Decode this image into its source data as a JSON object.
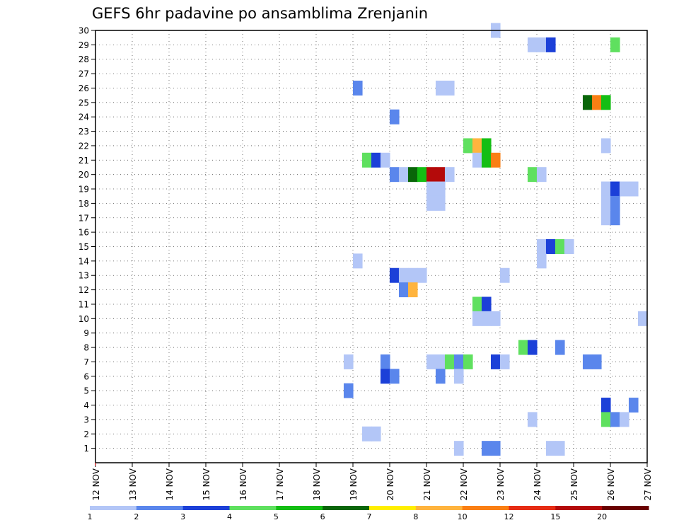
{
  "chart_data": {
    "type": "heatmap",
    "title": "GEFS 6hr padavine po ansamblima Zrenjanin",
    "xlabel": "",
    "ylabel": "",
    "x_ticks": [
      "12 NOV",
      "13 NOV",
      "14 NOV",
      "15 NOV",
      "16 NOV",
      "17 NOV",
      "18 NOV",
      "19 NOV",
      "20 NOV",
      "21 NOV",
      "22 NOV",
      "23 NOV",
      "24 NOV",
      "25 NOV",
      "26 NOV",
      "27 NOV"
    ],
    "x_range": [
      12,
      27
    ],
    "x_step_days": 0.25,
    "y_ticks": [
      1,
      2,
      3,
      4,
      5,
      6,
      7,
      8,
      9,
      10,
      11,
      12,
      13,
      14,
      15,
      16,
      17,
      18,
      19,
      20,
      21,
      22,
      23,
      24,
      25,
      26,
      27,
      28,
      29,
      30
    ],
    "y_range": [
      0,
      30
    ],
    "grid": true,
    "legend": {
      "placement": "bottom",
      "labels": [
        "1",
        "2",
        "3",
        "4",
        "5",
        "6",
        "7",
        "8",
        "10",
        "12",
        "15",
        "20"
      ],
      "colors": [
        "#b3c6f7",
        "#5a86ec",
        "#1c40d8",
        "#5fe05f",
        "#14be14",
        "#096609",
        "#ffef00",
        "#ffb43e",
        "#fa7f14",
        "#e62c14",
        "#b40a0a",
        "#6b0000"
      ]
    },
    "level_colors": {
      "1": "#b3c6f7",
      "2": "#5a86ec",
      "3": "#1c40d8",
      "4": "#5fe05f",
      "5": "#14be14",
      "6": "#096609",
      "8": "#ffb43e",
      "10": "#fa7f14",
      "15": "#b40a0a"
    },
    "cells": [
      {
        "member": 30,
        "time": 22.88,
        "level": 1
      },
      {
        "member": 29,
        "time": 23.88,
        "level": 1
      },
      {
        "member": 29,
        "time": 24.13,
        "level": 1
      },
      {
        "member": 29,
        "time": 24.38,
        "level": 3
      },
      {
        "member": 29,
        "time": 26.13,
        "level": 4
      },
      {
        "member": 26,
        "time": 19.13,
        "level": 2
      },
      {
        "member": 26,
        "time": 21.38,
        "level": 1
      },
      {
        "member": 26,
        "time": 21.63,
        "level": 1
      },
      {
        "member": 25,
        "time": 25.38,
        "level": 6
      },
      {
        "member": 25,
        "time": 25.63,
        "level": 10
      },
      {
        "member": 25,
        "time": 25.88,
        "level": 5
      },
      {
        "member": 24,
        "time": 20.13,
        "level": 2
      },
      {
        "member": 22,
        "time": 22.13,
        "level": 4
      },
      {
        "member": 22,
        "time": 22.38,
        "level": 8
      },
      {
        "member": 22,
        "time": 22.63,
        "level": 5
      },
      {
        "member": 22,
        "time": 25.88,
        "level": 1
      },
      {
        "member": 21,
        "time": 19.38,
        "level": 4
      },
      {
        "member": 21,
        "time": 19.63,
        "level": 3
      },
      {
        "member": 21,
        "time": 19.88,
        "level": 1
      },
      {
        "member": 21,
        "time": 22.38,
        "level": 1
      },
      {
        "member": 21,
        "time": 22.63,
        "level": 5
      },
      {
        "member": 21,
        "time": 22.88,
        "level": 10
      },
      {
        "member": 20,
        "time": 20.13,
        "level": 2
      },
      {
        "member": 20,
        "time": 20.38,
        "level": 1
      },
      {
        "member": 20,
        "time": 20.63,
        "level": 6
      },
      {
        "member": 20,
        "time": 20.88,
        "level": 5
      },
      {
        "member": 20,
        "time": 21.13,
        "level": 15
      },
      {
        "member": 20,
        "time": 21.38,
        "level": 15
      },
      {
        "member": 20,
        "time": 21.63,
        "level": 1
      },
      {
        "member": 20,
        "time": 23.88,
        "level": 4
      },
      {
        "member": 20,
        "time": 24.13,
        "level": 1
      },
      {
        "member": 19,
        "time": 21.13,
        "level": 1
      },
      {
        "member": 19,
        "time": 21.38,
        "level": 1
      },
      {
        "member": 19,
        "time": 25.88,
        "level": 1
      },
      {
        "member": 19,
        "time": 26.13,
        "level": 3
      },
      {
        "member": 19,
        "time": 26.38,
        "level": 1
      },
      {
        "member": 19,
        "time": 26.63,
        "level": 1
      },
      {
        "member": 18,
        "time": 21.13,
        "level": 1
      },
      {
        "member": 18,
        "time": 21.38,
        "level": 1
      },
      {
        "member": 18,
        "time": 25.88,
        "level": 1
      },
      {
        "member": 18,
        "time": 26.13,
        "level": 2
      },
      {
        "member": 17,
        "time": 25.88,
        "level": 1
      },
      {
        "member": 17,
        "time": 26.13,
        "level": 2
      },
      {
        "member": 15,
        "time": 24.13,
        "level": 1
      },
      {
        "member": 15,
        "time": 24.38,
        "level": 3
      },
      {
        "member": 15,
        "time": 24.63,
        "level": 4
      },
      {
        "member": 15,
        "time": 24.88,
        "level": 1
      },
      {
        "member": 14,
        "time": 19.13,
        "level": 1
      },
      {
        "member": 14,
        "time": 24.13,
        "level": 1
      },
      {
        "member": 13,
        "time": 20.13,
        "level": 3
      },
      {
        "member": 13,
        "time": 20.38,
        "level": 1
      },
      {
        "member": 13,
        "time": 20.63,
        "level": 1
      },
      {
        "member": 13,
        "time": 20.88,
        "level": 1
      },
      {
        "member": 13,
        "time": 23.13,
        "level": 1
      },
      {
        "member": 12,
        "time": 20.38,
        "level": 2
      },
      {
        "member": 12,
        "time": 20.63,
        "level": 8
      },
      {
        "member": 11,
        "time": 22.38,
        "level": 4
      },
      {
        "member": 11,
        "time": 22.63,
        "level": 3
      },
      {
        "member": 10,
        "time": 22.38,
        "level": 1
      },
      {
        "member": 10,
        "time": 22.63,
        "level": 1
      },
      {
        "member": 10,
        "time": 22.88,
        "level": 1
      },
      {
        "member": 10,
        "time": 26.88,
        "level": 1
      },
      {
        "member": 8,
        "time": 23.63,
        "level": 4
      },
      {
        "member": 8,
        "time": 23.88,
        "level": 3
      },
      {
        "member": 8,
        "time": 24.63,
        "level": 2
      },
      {
        "member": 7,
        "time": 18.88,
        "level": 1
      },
      {
        "member": 7,
        "time": 19.88,
        "level": 2
      },
      {
        "member": 7,
        "time": 21.13,
        "level": 1
      },
      {
        "member": 7,
        "time": 21.38,
        "level": 1
      },
      {
        "member": 7,
        "time": 21.63,
        "level": 4
      },
      {
        "member": 7,
        "time": 21.88,
        "level": 2
      },
      {
        "member": 7,
        "time": 22.13,
        "level": 4
      },
      {
        "member": 7,
        "time": 22.88,
        "level": 3
      },
      {
        "member": 7,
        "time": 23.13,
        "level": 1
      },
      {
        "member": 7,
        "time": 25.38,
        "level": 2
      },
      {
        "member": 7,
        "time": 25.63,
        "level": 2
      },
      {
        "member": 6,
        "time": 19.88,
        "level": 3
      },
      {
        "member": 6,
        "time": 20.13,
        "level": 2
      },
      {
        "member": 6,
        "time": 21.38,
        "level": 2
      },
      {
        "member": 6,
        "time": 21.88,
        "level": 1
      },
      {
        "member": 5,
        "time": 18.88,
        "level": 2
      },
      {
        "member": 4,
        "time": 25.88,
        "level": 3
      },
      {
        "member": 4,
        "time": 26.63,
        "level": 2
      },
      {
        "member": 3,
        "time": 23.88,
        "level": 1
      },
      {
        "member": 3,
        "time": 25.88,
        "level": 4
      },
      {
        "member": 3,
        "time": 26.13,
        "level": 2
      },
      {
        "member": 3,
        "time": 26.38,
        "level": 1
      },
      {
        "member": 2,
        "time": 19.38,
        "level": 1
      },
      {
        "member": 2,
        "time": 19.63,
        "level": 1
      },
      {
        "member": 1,
        "time": 21.88,
        "level": 1
      },
      {
        "member": 1,
        "time": 22.63,
        "level": 2
      },
      {
        "member": 1,
        "time": 22.88,
        "level": 2
      },
      {
        "member": 1,
        "time": 24.38,
        "level": 1
      },
      {
        "member": 1,
        "time": 24.63,
        "level": 1
      }
    ]
  }
}
